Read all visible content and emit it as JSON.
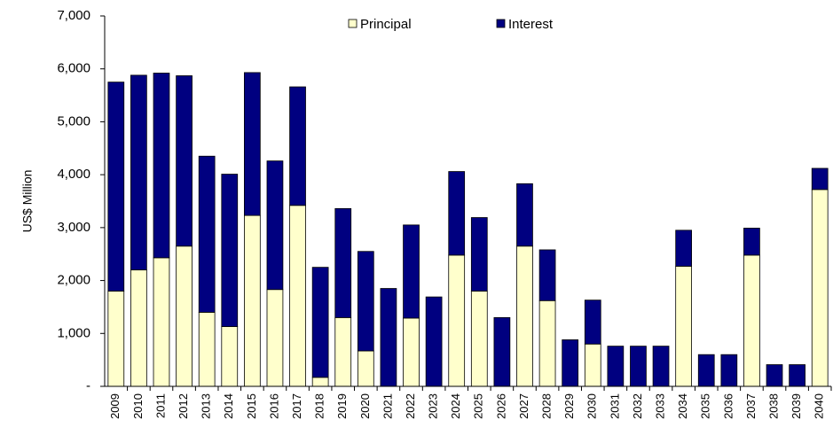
{
  "chart_data": {
    "type": "stacked-bar",
    "y_label": "US$ Million",
    "categories": [
      "2009",
      "2010",
      "2011",
      "2012",
      "2013",
      "2014",
      "2015",
      "2016",
      "2017",
      "2018",
      "2019",
      "2020",
      "2021",
      "2022",
      "2023",
      "2024",
      "2025",
      "2026",
      "2027",
      "2028",
      "2029",
      "2030",
      "2031",
      "2032",
      "2033",
      "2034",
      "2035",
      "2036",
      "2037",
      "2038",
      "2039",
      "2040"
    ],
    "series": [
      {
        "name": "Principal",
        "color": "#ffffcc",
        "values": [
          1800,
          2200,
          2430,
          2650,
          1400,
          1130,
          3230,
          1830,
          3420,
          170,
          1300,
          670,
          0,
          1290,
          0,
          2480,
          1800,
          0,
          2650,
          1620,
          0,
          800,
          0,
          0,
          0,
          2270,
          0,
          0,
          2480,
          0,
          0,
          3720
        ]
      },
      {
        "name": "Interest",
        "color": "#000080",
        "values": [
          3950,
          3680,
          3490,
          3220,
          2950,
          2880,
          2700,
          2430,
          2240,
          2080,
          2060,
          1880,
          1850,
          1760,
          1690,
          1580,
          1390,
          1300,
          1180,
          960,
          880,
          830,
          760,
          760,
          760,
          680,
          600,
          600,
          510,
          410,
          410,
          400
        ]
      }
    ],
    "ylim": [
      0,
      7000
    ],
    "yticks": [
      {
        "value": 0,
        "label": "-"
      },
      {
        "value": 1000,
        "label": "1,000"
      },
      {
        "value": 2000,
        "label": "2,000"
      },
      {
        "value": 3000,
        "label": "3,000"
      },
      {
        "value": 4000,
        "label": "4,000"
      },
      {
        "value": 5000,
        "label": "5,000"
      },
      {
        "value": 6000,
        "label": "6,000"
      },
      {
        "value": 7000,
        "label": "7,000"
      }
    ],
    "legend": "top"
  }
}
